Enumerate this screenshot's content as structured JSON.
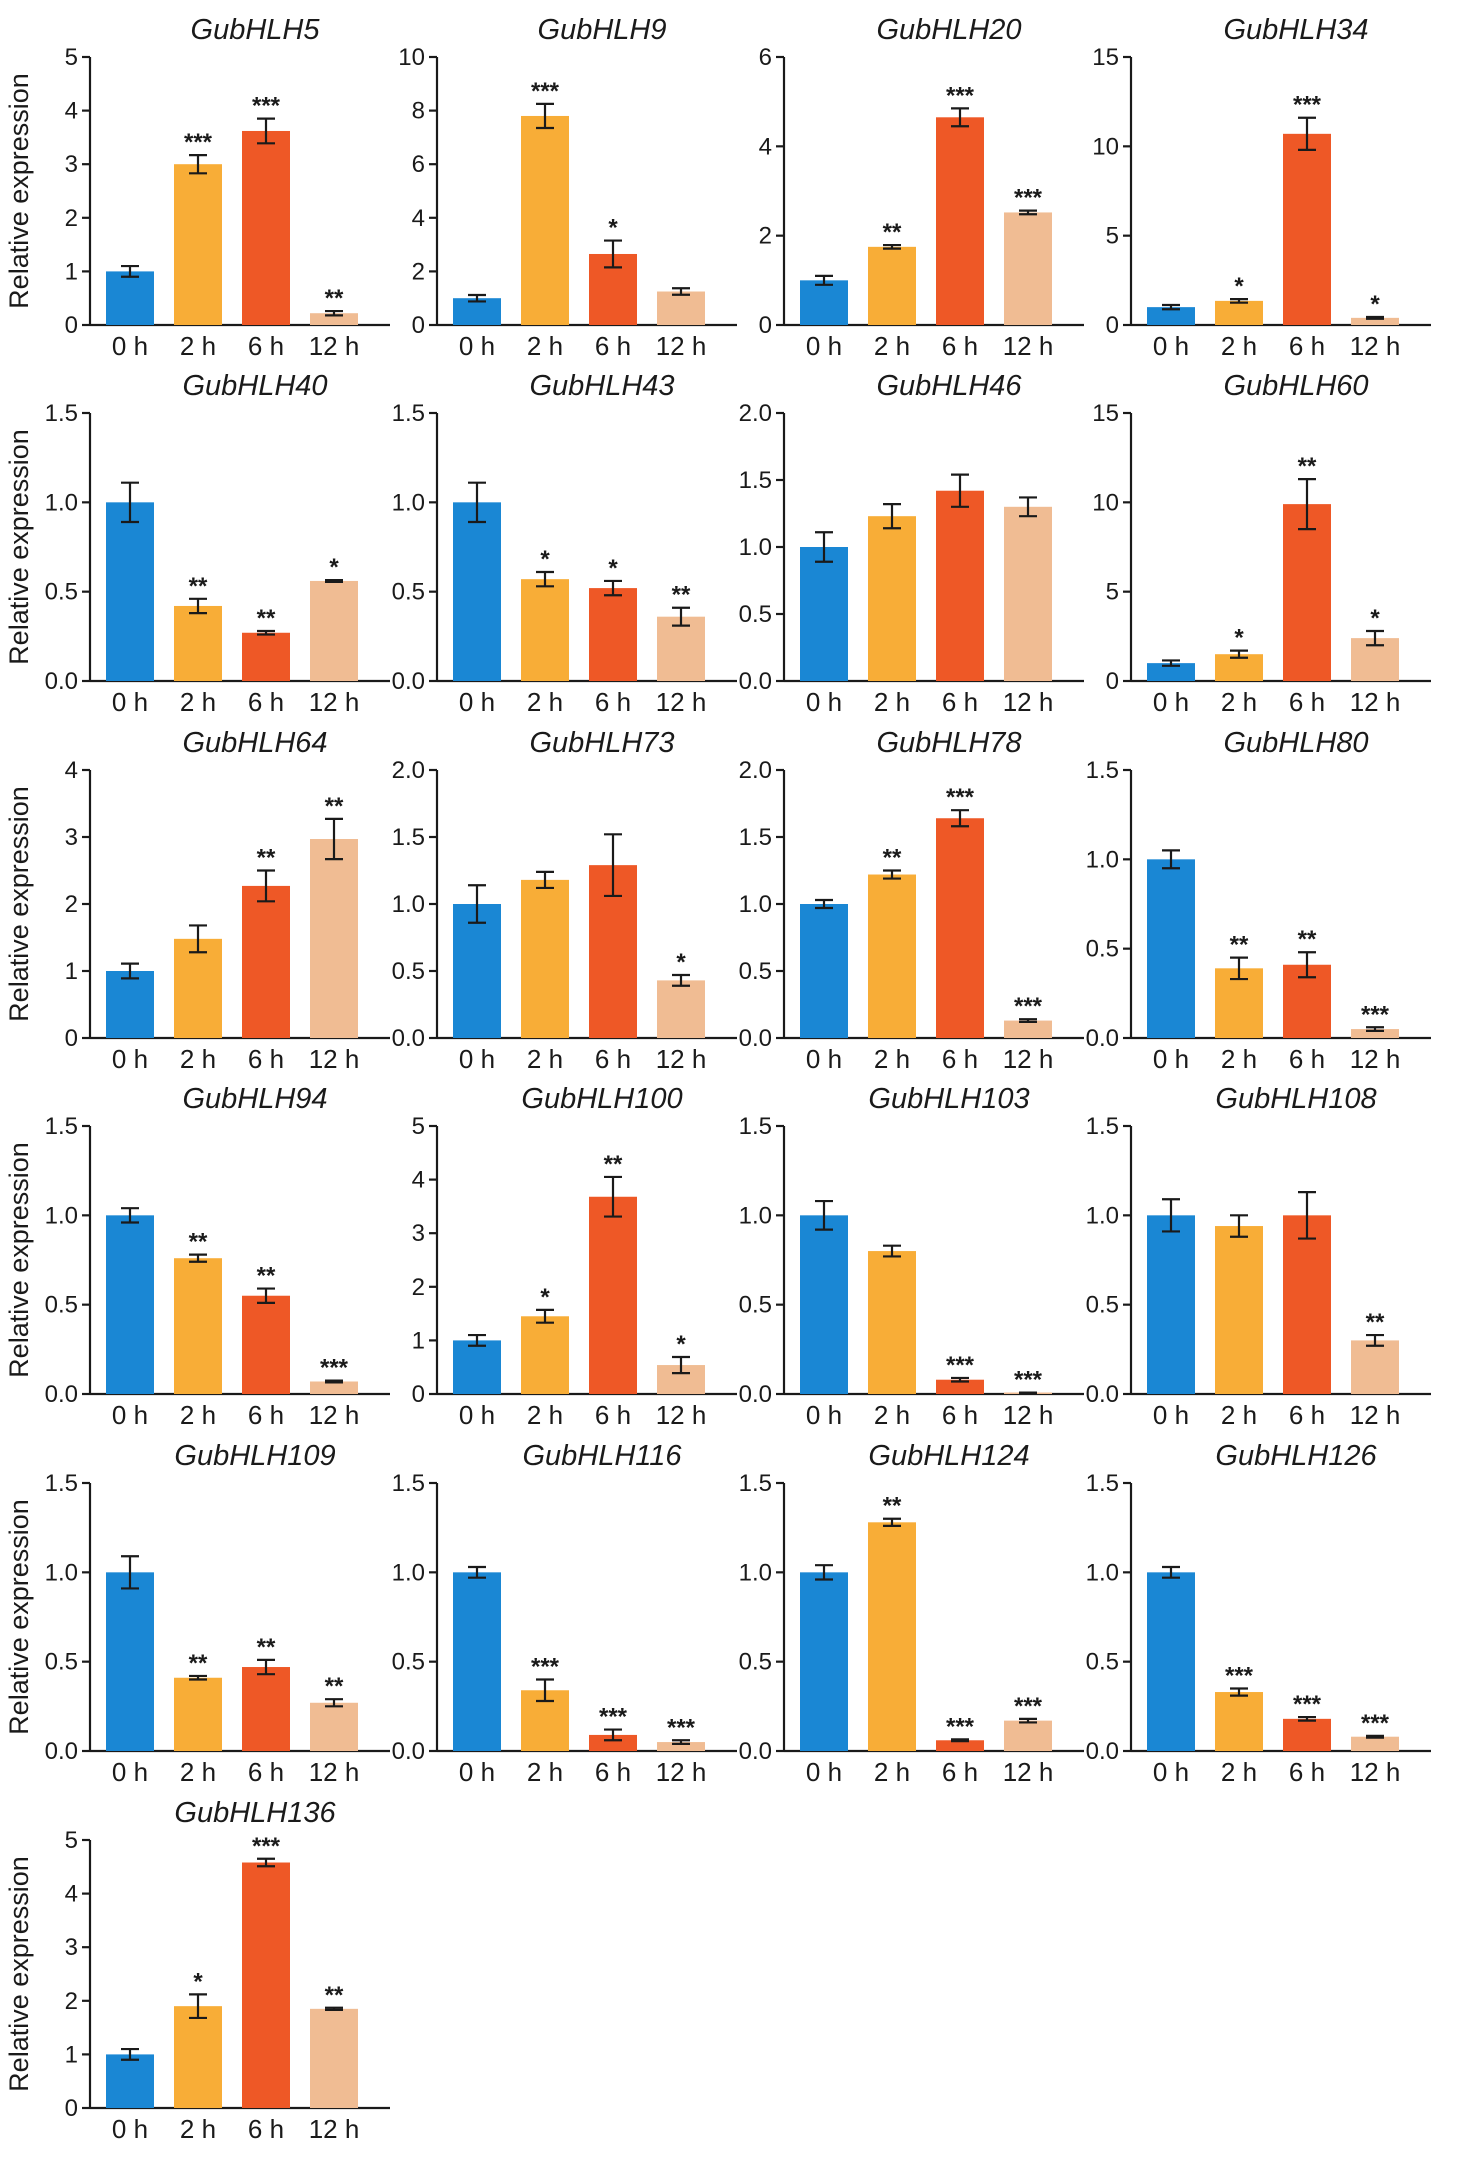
{
  "figure": {
    "ylabel": "Relative expression",
    "colors": [
      "#1a87d4",
      "#f8ad37",
      "#ee5826",
      "#f0bc93"
    ]
  },
  "chart_data": [
    {
      "type": "bar",
      "title": "GubHLH5",
      "categories": [
        "0 h",
        "2 h",
        "6 h",
        "12 h"
      ],
      "values": [
        1.0,
        3.0,
        3.62,
        0.22
      ],
      "errors": [
        0.1,
        0.17,
        0.23,
        0.04
      ],
      "significance": [
        "",
        "***",
        "***",
        "**"
      ],
      "ylim": [
        0,
        5
      ],
      "yticks": [
        "0",
        "1",
        "2",
        "3",
        "4",
        "5"
      ],
      "ylabel": "Relative expression"
    },
    {
      "type": "bar",
      "title": "GubHLH9",
      "categories": [
        "0 h",
        "2 h",
        "6 h",
        "12 h"
      ],
      "values": [
        1.0,
        7.8,
        2.65,
        1.25
      ],
      "errors": [
        0.12,
        0.45,
        0.5,
        0.12
      ],
      "significance": [
        "",
        "***",
        "*",
        ""
      ],
      "ylim": [
        0,
        10
      ],
      "yticks": [
        "0",
        "2",
        "4",
        "6",
        "8",
        "10"
      ],
      "ylabel": ""
    },
    {
      "type": "bar",
      "title": "GubHLH20",
      "categories": [
        "0 h",
        "2 h",
        "6 h",
        "12 h"
      ],
      "values": [
        1.0,
        1.75,
        4.65,
        2.52
      ],
      "errors": [
        0.1,
        0.04,
        0.2,
        0.04
      ],
      "significance": [
        "",
        "**",
        "***",
        "***"
      ],
      "ylim": [
        0,
        6
      ],
      "yticks": [
        "0",
        "2",
        "4",
        "6"
      ],
      "ylabel": ""
    },
    {
      "type": "bar",
      "title": "GubHLH34",
      "categories": [
        "0 h",
        "2 h",
        "6 h",
        "12 h"
      ],
      "values": [
        1.0,
        1.35,
        10.7,
        0.4
      ],
      "errors": [
        0.12,
        0.1,
        0.9,
        0.05
      ],
      "significance": [
        "",
        "*",
        "***",
        "*"
      ],
      "ylim": [
        0,
        15
      ],
      "yticks": [
        "0",
        "5",
        "10",
        "15"
      ],
      "ylabel": ""
    },
    {
      "type": "bar",
      "title": "GubHLH40",
      "categories": [
        "0 h",
        "2 h",
        "6 h",
        "12 h"
      ],
      "values": [
        1.0,
        0.42,
        0.27,
        0.56
      ],
      "errors": [
        0.11,
        0.04,
        0.01,
        0.005
      ],
      "significance": [
        "",
        "**",
        "**",
        "*"
      ],
      "ylim": [
        0,
        1.5
      ],
      "yticks": [
        "0.0",
        "0.5",
        "1.0",
        "1.5"
      ],
      "ylabel": "Relative expression"
    },
    {
      "type": "bar",
      "title": "GubHLH43",
      "categories": [
        "0 h",
        "2 h",
        "6 h",
        "12 h"
      ],
      "values": [
        1.0,
        0.57,
        0.52,
        0.36
      ],
      "errors": [
        0.11,
        0.04,
        0.04,
        0.05
      ],
      "significance": [
        "",
        "*",
        "*",
        "**"
      ],
      "ylim": [
        0,
        1.5
      ],
      "yticks": [
        "0.0",
        "0.5",
        "1.0",
        "1.5"
      ],
      "ylabel": ""
    },
    {
      "type": "bar",
      "title": "GubHLH46",
      "categories": [
        "0 h",
        "2 h",
        "6 h",
        "12 h"
      ],
      "values": [
        1.0,
        1.23,
        1.42,
        1.3
      ],
      "errors": [
        0.11,
        0.09,
        0.12,
        0.07
      ],
      "significance": [
        "",
        "",
        "",
        ""
      ],
      "ylim": [
        0,
        2.0
      ],
      "yticks": [
        "0.0",
        "0.5",
        "1.0",
        "1.5",
        "2.0"
      ],
      "ylabel": ""
    },
    {
      "type": "bar",
      "title": "GubHLH60",
      "categories": [
        "0 h",
        "2 h",
        "6 h",
        "12 h"
      ],
      "values": [
        1.0,
        1.5,
        9.9,
        2.4
      ],
      "errors": [
        0.15,
        0.2,
        1.4,
        0.4
      ],
      "significance": [
        "",
        "*",
        "**",
        "*"
      ],
      "ylim": [
        0,
        15
      ],
      "yticks": [
        "0",
        "5",
        "10",
        "15"
      ],
      "ylabel": ""
    },
    {
      "type": "bar",
      "title": "GubHLH64",
      "categories": [
        "0 h",
        "2 h",
        "6 h",
        "12 h"
      ],
      "values": [
        1.0,
        1.48,
        2.27,
        2.97
      ],
      "errors": [
        0.11,
        0.2,
        0.23,
        0.3
      ],
      "significance": [
        "",
        "",
        "**",
        "**"
      ],
      "ylim": [
        0,
        4
      ],
      "yticks": [
        "0",
        "1",
        "2",
        "3",
        "4"
      ],
      "ylabel": "Relative expression"
    },
    {
      "type": "bar",
      "title": "GubHLH73",
      "categories": [
        "0 h",
        "2 h",
        "6 h",
        "12 h"
      ],
      "values": [
        1.0,
        1.18,
        1.29,
        0.43
      ],
      "errors": [
        0.14,
        0.06,
        0.23,
        0.04
      ],
      "significance": [
        "",
        "",
        "",
        "*"
      ],
      "ylim": [
        0,
        2.0
      ],
      "yticks": [
        "0.0",
        "0.5",
        "1.0",
        "1.5",
        "2.0"
      ],
      "ylabel": ""
    },
    {
      "type": "bar",
      "title": "GubHLH78",
      "categories": [
        "0 h",
        "2 h",
        "6 h",
        "12 h"
      ],
      "values": [
        1.0,
        1.22,
        1.64,
        0.13
      ],
      "errors": [
        0.03,
        0.03,
        0.06,
        0.01
      ],
      "significance": [
        "",
        "**",
        "***",
        "***"
      ],
      "ylim": [
        0,
        2.0
      ],
      "yticks": [
        "0.0",
        "0.5",
        "1.0",
        "1.5",
        "2.0"
      ],
      "ylabel": ""
    },
    {
      "type": "bar",
      "title": "GubHLH80",
      "categories": [
        "0 h",
        "2 h",
        "6 h",
        "12 h"
      ],
      "values": [
        1.0,
        0.39,
        0.41,
        0.05
      ],
      "errors": [
        0.05,
        0.06,
        0.07,
        0.01
      ],
      "significance": [
        "",
        "**",
        "**",
        "***"
      ],
      "ylim": [
        0,
        1.5
      ],
      "yticks": [
        "0.0",
        "0.5",
        "1.0",
        "1.5"
      ],
      "ylabel": ""
    },
    {
      "type": "bar",
      "title": "GubHLH94",
      "categories": [
        "0 h",
        "2 h",
        "6 h",
        "12 h"
      ],
      "values": [
        1.0,
        0.76,
        0.55,
        0.07
      ],
      "errors": [
        0.04,
        0.02,
        0.04,
        0.005
      ],
      "significance": [
        "",
        "**",
        "**",
        "***"
      ],
      "ylim": [
        0,
        1.5
      ],
      "yticks": [
        "0.0",
        "0.5",
        "1.0",
        "1.5"
      ],
      "ylabel": "Relative expression"
    },
    {
      "type": "bar",
      "title": "GubHLH100",
      "categories": [
        "0 h",
        "2 h",
        "6 h",
        "12 h"
      ],
      "values": [
        1.0,
        1.45,
        3.68,
        0.54
      ],
      "errors": [
        0.1,
        0.12,
        0.37,
        0.15
      ],
      "significance": [
        "",
        "*",
        "**",
        "*"
      ],
      "ylim": [
        0,
        5
      ],
      "yticks": [
        "0",
        "1",
        "2",
        "3",
        "4",
        "5"
      ],
      "ylabel": ""
    },
    {
      "type": "bar",
      "title": "GubHLH103",
      "categories": [
        "0 h",
        "2 h",
        "6 h",
        "12 h"
      ],
      "values": [
        1.0,
        0.8,
        0.08,
        0.005
      ],
      "errors": [
        0.08,
        0.03,
        0.01,
        0.003
      ],
      "significance": [
        "",
        "",
        "***",
        "***"
      ],
      "ylim": [
        0,
        1.5
      ],
      "yticks": [
        "0.0",
        "0.5",
        "1.0",
        "1.5"
      ],
      "ylabel": ""
    },
    {
      "type": "bar",
      "title": "GubHLH108",
      "categories": [
        "0 h",
        "2 h",
        "6 h",
        "12 h"
      ],
      "values": [
        1.0,
        0.94,
        1.0,
        0.3
      ],
      "errors": [
        0.09,
        0.06,
        0.13,
        0.03
      ],
      "significance": [
        "",
        "",
        "",
        "**"
      ],
      "ylim": [
        0,
        1.5
      ],
      "yticks": [
        "0.0",
        "0.5",
        "1.0",
        "1.5"
      ],
      "ylabel": ""
    },
    {
      "type": "bar",
      "title": "GubHLH109",
      "categories": [
        "0 h",
        "2 h",
        "6 h",
        "12 h"
      ],
      "values": [
        1.0,
        0.41,
        0.47,
        0.27
      ],
      "errors": [
        0.09,
        0.01,
        0.04,
        0.02
      ],
      "significance": [
        "",
        "**",
        "**",
        "**"
      ],
      "ylim": [
        0,
        1.5
      ],
      "yticks": [
        "0.0",
        "0.5",
        "1.0",
        "1.5"
      ],
      "ylabel": "Relative expression"
    },
    {
      "type": "bar",
      "title": "GubHLH116",
      "categories": [
        "0 h",
        "2 h",
        "6 h",
        "12 h"
      ],
      "values": [
        1.0,
        0.34,
        0.09,
        0.05
      ],
      "errors": [
        0.03,
        0.06,
        0.03,
        0.01
      ],
      "significance": [
        "",
        "***",
        "***",
        "***"
      ],
      "ylim": [
        0,
        1.5
      ],
      "yticks": [
        "0.0",
        "0.5",
        "1.0",
        "1.5"
      ],
      "ylabel": ""
    },
    {
      "type": "bar",
      "title": "GubHLH124",
      "categories": [
        "0 h",
        "2 h",
        "6 h",
        "12 h"
      ],
      "values": [
        1.0,
        1.28,
        0.06,
        0.17
      ],
      "errors": [
        0.04,
        0.02,
        0.005,
        0.01
      ],
      "significance": [
        "",
        "**",
        "***",
        "***"
      ],
      "ylim": [
        0,
        1.5
      ],
      "yticks": [
        "0.0",
        "0.5",
        "1.0",
        "1.5"
      ],
      "ylabel": ""
    },
    {
      "type": "bar",
      "title": "GubHLH126",
      "categories": [
        "0 h",
        "2 h",
        "6 h",
        "12 h"
      ],
      "values": [
        1.0,
        0.33,
        0.18,
        0.08
      ],
      "errors": [
        0.03,
        0.02,
        0.01,
        0.005
      ],
      "significance": [
        "",
        "***",
        "***",
        "***"
      ],
      "ylim": [
        0,
        1.5
      ],
      "yticks": [
        "0.0",
        "0.5",
        "1.0",
        "1.5"
      ],
      "ylabel": ""
    },
    {
      "type": "bar",
      "title": "GubHLH136",
      "categories": [
        "0 h",
        "2 h",
        "6 h",
        "12 h"
      ],
      "values": [
        1.0,
        1.9,
        4.58,
        1.85
      ],
      "errors": [
        0.1,
        0.22,
        0.07,
        0.02
      ],
      "significance": [
        "",
        "*",
        "***",
        "**"
      ],
      "ylim": [
        0,
        5
      ],
      "yticks": [
        "0",
        "1",
        "2",
        "3",
        "4",
        "5"
      ],
      "ylabel": "Relative expression"
    }
  ]
}
